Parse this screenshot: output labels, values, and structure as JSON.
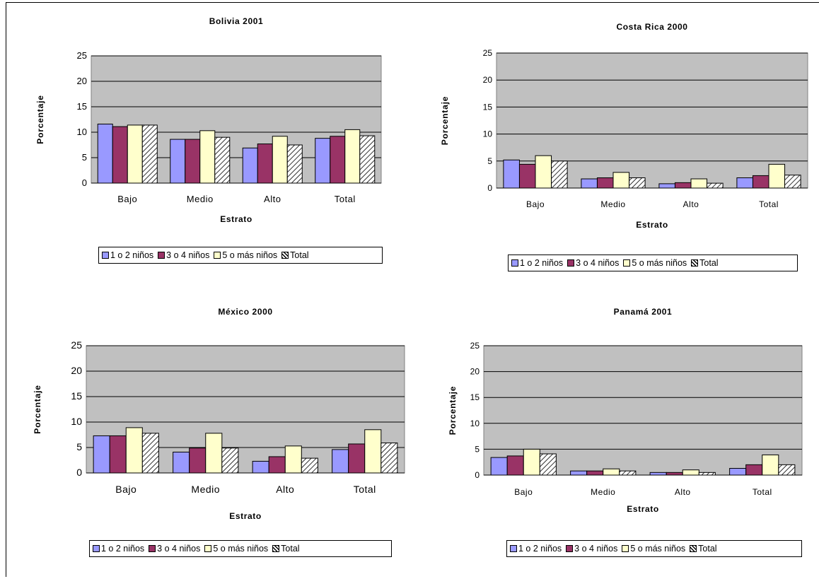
{
  "series_colors": [
    "#9999ff",
    "#993366",
    "#ffffcc",
    "hatch"
  ],
  "plot_background": "#c0c0c0",
  "chart_data": [
    {
      "type": "bar",
      "title": "Bolivia 2001",
      "xlabel": "Estrato",
      "ylabel": "Porcentaje",
      "ylim": [
        0,
        25
      ],
      "yticks": [
        "0",
        "5",
        "10",
        "15",
        "20",
        "25"
      ],
      "categories": [
        "Bajo",
        "Medio",
        "Alto",
        "Total"
      ],
      "series": [
        {
          "name": "1 o 2 niños",
          "values": [
            11.6,
            8.6,
            6.9,
            8.8
          ]
        },
        {
          "name": "3 o 4 niños",
          "values": [
            11.1,
            8.6,
            7.7,
            9.2
          ]
        },
        {
          "name": "5 o más niños",
          "values": [
            11.4,
            10.3,
            9.2,
            10.5
          ]
        },
        {
          "name": "Total",
          "values": [
            11.4,
            9.0,
            7.5,
            9.3
          ]
        }
      ],
      "grid": true,
      "legend": "bottom"
    },
    {
      "type": "bar",
      "title": "Costa Rica 2000",
      "xlabel": "Estrato",
      "ylabel": "Porcentaje",
      "ylim": [
        0,
        25
      ],
      "yticks": [
        "0",
        "5",
        "10",
        "15",
        "20",
        "25"
      ],
      "categories": [
        "Bajo",
        "Medio",
        "Alto",
        "Total"
      ],
      "series": [
        {
          "name": "1 o 2 niños",
          "values": [
            5.2,
            1.7,
            0.8,
            1.9
          ]
        },
        {
          "name": "3 o 4 niños",
          "values": [
            4.4,
            1.9,
            1.0,
            2.3
          ]
        },
        {
          "name": "5 o más niños",
          "values": [
            6.0,
            2.9,
            1.7,
            4.4
          ]
        },
        {
          "name": "Total",
          "values": [
            5.0,
            1.9,
            0.9,
            2.4
          ]
        }
      ],
      "grid": true,
      "legend": "bottom"
    },
    {
      "type": "bar",
      "title": "México 2000",
      "xlabel": "Estrato",
      "ylabel": "Porcentaje",
      "ylim": [
        0,
        25
      ],
      "yticks": [
        "0",
        "5",
        "10",
        "15",
        "20",
        "25"
      ],
      "categories": [
        "Bajo",
        "Medio",
        "Alto",
        "Total"
      ],
      "series": [
        {
          "name": "1 o 2 niños",
          "values": [
            7.3,
            4.1,
            2.3,
            4.6
          ]
        },
        {
          "name": "3 o 4 niños",
          "values": [
            7.3,
            4.9,
            3.2,
            5.7
          ]
        },
        {
          "name": "5 o más niños",
          "values": [
            8.9,
            7.8,
            5.3,
            8.5
          ]
        },
        {
          "name": "Total",
          "values": [
            7.8,
            4.9,
            2.9,
            5.9
          ]
        }
      ],
      "grid": true,
      "legend": "bottom"
    },
    {
      "type": "bar",
      "title": "Panamá 2001",
      "xlabel": "Estrato",
      "ylabel": "Porcentaje",
      "ylim": [
        0,
        25
      ],
      "yticks": [
        "0",
        "5",
        "10",
        "15",
        "20",
        "25"
      ],
      "categories": [
        "Bajo",
        "Medio",
        "Alto",
        "Total"
      ],
      "series": [
        {
          "name": "1 o 2 niños",
          "values": [
            3.4,
            0.8,
            0.5,
            1.3
          ]
        },
        {
          "name": "3 o 4 niños",
          "values": [
            3.7,
            0.8,
            0.5,
            2.0
          ]
        },
        {
          "name": "5 o más niños",
          "values": [
            5.0,
            1.2,
            1.0,
            3.9
          ]
        },
        {
          "name": "Total",
          "values": [
            4.1,
            0.8,
            0.5,
            2.0
          ]
        }
      ],
      "grid": true,
      "legend": "bottom"
    }
  ]
}
